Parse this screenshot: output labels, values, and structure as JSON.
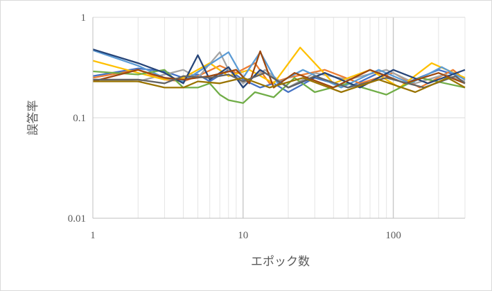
{
  "chart_data": {
    "type": "line",
    "title": "",
    "xlabel": "エポック数",
    "ylabel": "誤答率",
    "x_scale": "log",
    "y_scale": "log",
    "xlim": [
      1,
      300
    ],
    "ylim": [
      0.01,
      1
    ],
    "grid": true,
    "legend": "none",
    "x_ticks": [
      {
        "value": 1,
        "label": "1"
      },
      {
        "value": 10,
        "label": "10"
      },
      {
        "value": 100,
        "label": "100"
      }
    ],
    "y_ticks": [
      {
        "value": 0.01,
        "label": "0.01"
      },
      {
        "value": 0.1,
        "label": "0.1"
      },
      {
        "value": 1,
        "label": "1"
      }
    ],
    "series": [
      {
        "color": "#4472c4",
        "points": [
          [
            1,
            0.26
          ],
          [
            2,
            0.31
          ],
          [
            3,
            0.29
          ],
          [
            4,
            0.25
          ],
          [
            5,
            0.27
          ],
          [
            6,
            0.23
          ],
          [
            8,
            0.3
          ],
          [
            10,
            0.24
          ],
          [
            13,
            0.2
          ],
          [
            16,
            0.22
          ],
          [
            20,
            0.18
          ],
          [
            30,
            0.25
          ],
          [
            50,
            0.2
          ],
          [
            80,
            0.28
          ],
          [
            120,
            0.22
          ],
          [
            200,
            0.3
          ],
          [
            300,
            0.25
          ]
        ]
      },
      {
        "color": "#ed7d31",
        "points": [
          [
            1,
            0.25
          ],
          [
            2,
            0.3
          ],
          [
            3,
            0.24
          ],
          [
            4,
            0.23
          ],
          [
            5,
            0.26
          ],
          [
            7,
            0.33
          ],
          [
            9,
            0.28
          ],
          [
            12,
            0.35
          ],
          [
            15,
            0.22
          ],
          [
            20,
            0.25
          ],
          [
            35,
            0.3
          ],
          [
            60,
            0.22
          ],
          [
            100,
            0.28
          ],
          [
            150,
            0.2
          ],
          [
            250,
            0.3
          ],
          [
            300,
            0.24
          ]
        ]
      },
      {
        "color": "#a5a5a5",
        "points": [
          [
            1,
            0.24
          ],
          [
            2,
            0.23
          ],
          [
            3,
            0.27
          ],
          [
            4,
            0.3
          ],
          [
            5,
            0.25
          ],
          [
            7,
            0.45
          ],
          [
            8,
            0.3
          ],
          [
            10,
            0.22
          ],
          [
            14,
            0.3
          ],
          [
            20,
            0.2
          ],
          [
            30,
            0.28
          ],
          [
            50,
            0.24
          ],
          [
            90,
            0.3
          ],
          [
            140,
            0.22
          ],
          [
            220,
            0.27
          ],
          [
            300,
            0.23
          ]
        ]
      },
      {
        "color": "#ffc000",
        "points": [
          [
            1,
            0.37
          ],
          [
            2,
            0.28
          ],
          [
            3,
            0.24
          ],
          [
            4,
            0.25
          ],
          [
            6,
            0.35
          ],
          [
            8,
            0.26
          ],
          [
            11,
            0.3
          ],
          [
            16,
            0.22
          ],
          [
            24,
            0.5
          ],
          [
            40,
            0.22
          ],
          [
            70,
            0.3
          ],
          [
            110,
            0.2
          ],
          [
            180,
            0.35
          ],
          [
            300,
            0.25
          ]
        ]
      },
      {
        "color": "#5b9bd5",
        "points": [
          [
            1,
            0.47
          ],
          [
            2,
            0.33
          ],
          [
            3,
            0.25
          ],
          [
            4,
            0.23
          ],
          [
            6,
            0.34
          ],
          [
            8,
            0.45
          ],
          [
            10,
            0.25
          ],
          [
            13,
            0.45
          ],
          [
            17,
            0.22
          ],
          [
            25,
            0.3
          ],
          [
            45,
            0.2
          ],
          [
            80,
            0.3
          ],
          [
            130,
            0.22
          ],
          [
            210,
            0.32
          ],
          [
            300,
            0.24
          ]
        ]
      },
      {
        "color": "#70ad47",
        "points": [
          [
            1,
            0.29
          ],
          [
            2,
            0.27
          ],
          [
            3,
            0.3
          ],
          [
            4,
            0.2
          ],
          [
            5,
            0.2
          ],
          [
            6,
            0.22
          ],
          [
            7,
            0.17
          ],
          [
            8,
            0.15
          ],
          [
            10,
            0.14
          ],
          [
            12,
            0.18
          ],
          [
            16,
            0.16
          ],
          [
            22,
            0.25
          ],
          [
            30,
            0.18
          ],
          [
            50,
            0.22
          ],
          [
            90,
            0.17
          ],
          [
            150,
            0.25
          ],
          [
            300,
            0.2
          ]
        ]
      },
      {
        "color": "#264478",
        "points": [
          [
            1,
            0.48
          ],
          [
            2,
            0.35
          ],
          [
            3,
            0.28
          ],
          [
            4,
            0.22
          ],
          [
            5,
            0.42
          ],
          [
            6,
            0.24
          ],
          [
            8,
            0.32
          ],
          [
            10,
            0.2
          ],
          [
            13,
            0.3
          ],
          [
            20,
            0.2
          ],
          [
            35,
            0.28
          ],
          [
            60,
            0.2
          ],
          [
            100,
            0.3
          ],
          [
            170,
            0.22
          ],
          [
            300,
            0.3
          ]
        ]
      },
      {
        "color": "#9e480e",
        "points": [
          [
            1,
            0.23
          ],
          [
            2,
            0.3
          ],
          [
            3,
            0.25
          ],
          [
            4,
            0.24
          ],
          [
            6,
            0.26
          ],
          [
            9,
            0.3
          ],
          [
            11,
            0.22
          ],
          [
            13,
            0.46
          ],
          [
            16,
            0.2
          ],
          [
            22,
            0.28
          ],
          [
            40,
            0.2
          ],
          [
            70,
            0.3
          ],
          [
            120,
            0.22
          ],
          [
            200,
            0.28
          ],
          [
            300,
            0.22
          ]
        ]
      },
      {
        "color": "#636363",
        "points": [
          [
            1,
            0.24
          ],
          [
            2,
            0.24
          ],
          [
            3,
            0.22
          ],
          [
            4,
            0.26
          ],
          [
            6,
            0.25
          ],
          [
            8,
            0.27
          ],
          [
            10,
            0.23
          ],
          [
            14,
            0.28
          ],
          [
            20,
            0.2
          ],
          [
            30,
            0.26
          ],
          [
            50,
            0.2
          ],
          [
            90,
            0.25
          ],
          [
            160,
            0.2
          ],
          [
            260,
            0.26
          ],
          [
            300,
            0.22
          ]
        ]
      },
      {
        "color": "#997300",
        "points": [
          [
            1,
            0.23
          ],
          [
            2,
            0.23
          ],
          [
            3,
            0.2
          ],
          [
            4,
            0.2
          ],
          [
            5,
            0.23
          ],
          [
            7,
            0.22
          ],
          [
            10,
            0.25
          ],
          [
            15,
            0.2
          ],
          [
            25,
            0.25
          ],
          [
            45,
            0.18
          ],
          [
            80,
            0.24
          ],
          [
            140,
            0.18
          ],
          [
            230,
            0.25
          ],
          [
            300,
            0.2
          ]
        ]
      }
    ]
  }
}
